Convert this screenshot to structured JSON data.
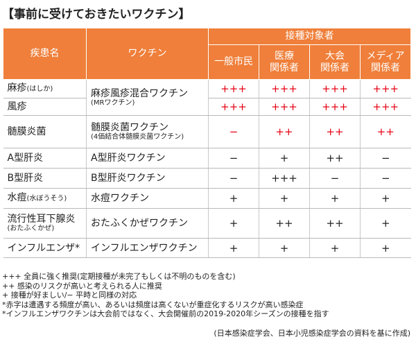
{
  "title": "【事前に受けておきたいワクチン】",
  "header": {
    "disease": "疾患名",
    "vaccine": "ワクチン",
    "target_group": "接種対象者",
    "groups": [
      "一般市民",
      "医療\n関係者",
      "大会\n関係者",
      "メディア\n関係者"
    ]
  },
  "rows": [
    {
      "disease": "麻疹",
      "disease_sub": "(はしか)",
      "vaccine": "麻疹風疹混合ワクチン",
      "vaccine_sub": "(MRワクチン)",
      "marks": [
        "+++",
        "+++",
        "+++",
        "+++"
      ],
      "mark_color": "#e60012"
    },
    {
      "disease": "風疹",
      "disease_sub": "",
      "vaccine": "",
      "vaccine_sub": "",
      "marks": [
        "+++",
        "+++",
        "+++",
        "+++"
      ],
      "mark_color": "#e60012"
    },
    {
      "disease": "髄膜炎菌",
      "disease_sub": "",
      "vaccine": "髄膜炎菌ワクチン",
      "vaccine_sub": "(4価結合体髄膜炎菌ワクチン)",
      "marks": [
        "−",
        "++",
        "++",
        "++"
      ],
      "mark_color": "#e60012"
    },
    {
      "disease": "A型肝炎",
      "disease_sub": "",
      "vaccine": "A型肝炎ワクチン",
      "vaccine_sub": "",
      "marks": [
        "−",
        "+",
        "++",
        "−"
      ],
      "mark_color": "#222222"
    },
    {
      "disease": "B型肝炎",
      "disease_sub": "",
      "vaccine": "B型肝炎ワクチン",
      "vaccine_sub": "",
      "marks": [
        "−",
        "+++",
        "−",
        "−"
      ],
      "mark_color": "#222222"
    },
    {
      "disease": "水痘",
      "disease_sub": "(水ぼうそう)",
      "vaccine": "水痘ワクチン",
      "vaccine_sub": "",
      "marks": [
        "+",
        "+",
        "+",
        "+"
      ],
      "mark_color": "#222222"
    },
    {
      "disease": "流行性耳下腺炎",
      "disease_sub": "(おたふくかぜ)",
      "vaccine": "おたふくかぜワクチン",
      "vaccine_sub": "",
      "marks": [
        "+",
        "++",
        "++",
        "+"
      ],
      "mark_color": "#222222"
    },
    {
      "disease": "インフルエンザ*",
      "disease_sub": "",
      "vaccine": "インフルエンザワクチン",
      "vaccine_sub": "",
      "marks": [
        "+",
        "+",
        "+",
        "+"
      ],
      "mark_color": "#222222"
    }
  ],
  "notes": [
    "+++ 全員に強く推奨(定期接種が未完了もしくは不明のものを含む)",
    "++ 感染のリスクが高いと考えられる人に推奨",
    "+ 接種が好ましい/− 平時と同様の対応",
    "*赤字は遭遇する頻度が高い、あるいは頻度は高くないが重症化するリスクが高い感染症",
    "*インフルエンザワクチンは大会前ではなく、大会開催前の2019-2020年シーズンの接種を指す"
  ],
  "source": "(日本感染症学会、日本小児感染症学会の資料を基に作成)",
  "colors": {
    "header_bg": "#ef7f3a",
    "red_mark": "#e60012",
    "text": "#222222"
  }
}
